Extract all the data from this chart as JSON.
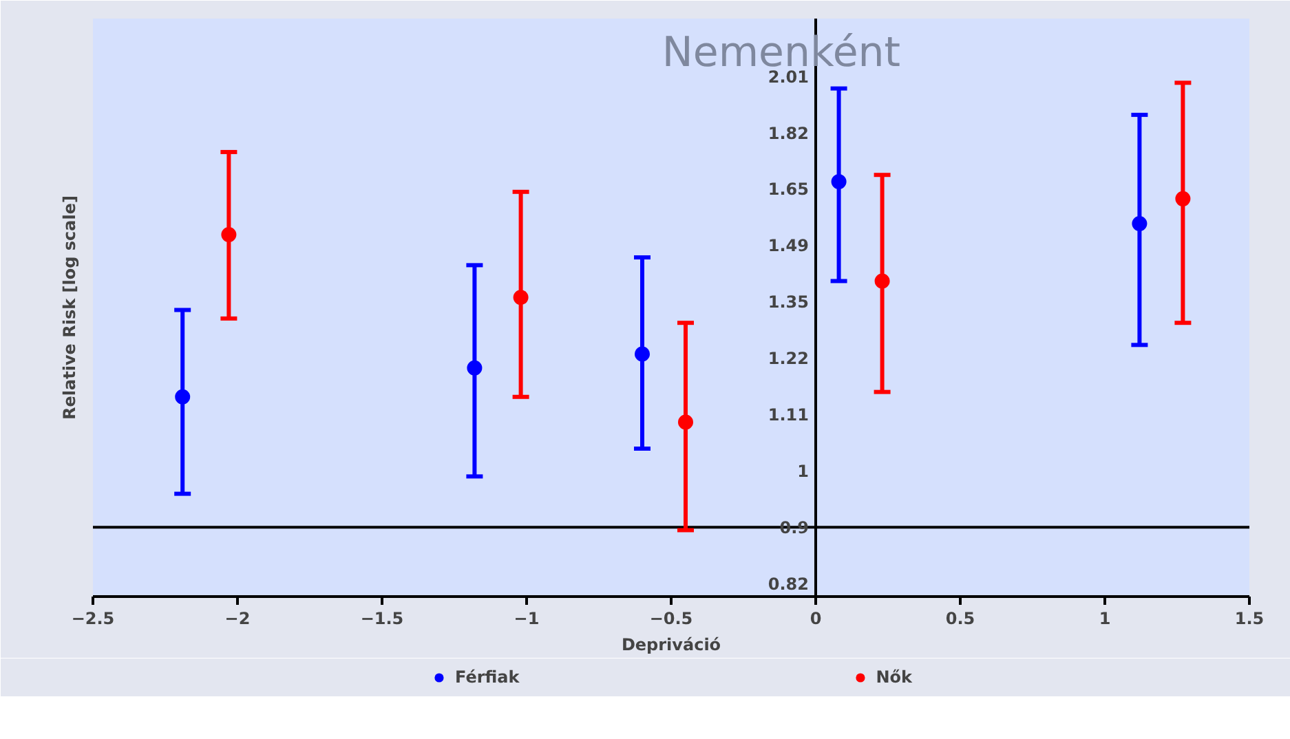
{
  "chart_data": {
    "type": "scatter",
    "title": "Nemenként",
    "xlabel": "Depriváció",
    "ylabel": "Relative Risk [log scale]",
    "log": true,
    "xlim": [
      -2.5,
      1.5
    ],
    "xticks": [
      -2.5,
      -2,
      -1.5,
      -1,
      -0.5,
      0,
      0.5,
      1,
      1.5
    ],
    "ylim": [
      0.8,
      2.23
    ],
    "yticks": [
      {
        "value": 0.8187,
        "label": "0.82"
      },
      {
        "value": 0.9048,
        "label": "0.9"
      },
      1,
      {
        "value": 1.1052,
        "label": "1.11"
      },
      {
        "value": 1.2214,
        "label": "1.22"
      },
      {
        "value": 1.3499,
        "label": "1.35"
      },
      {
        "value": 1.4918,
        "label": "1.49"
      },
      {
        "value": 1.6487,
        "label": "1.65"
      },
      {
        "value": 1.8221,
        "label": "1.82"
      },
      {
        "value": 2.0138,
        "label": "2.01"
      }
    ],
    "grid": false,
    "legend": "bottom",
    "marker": "circle",
    "ref_lines": [
      {
        "axis": "y",
        "value": 0.9048,
        "label": null,
        "color": "#000000"
      }
    ],
    "series": [
      {
        "name": "Férfiak",
        "color": "#0000ff",
        "x": [
          -2.19,
          -1.18,
          -0.6,
          0.08,
          1.12
        ],
        "values": [
          1.14,
          1.2,
          1.23,
          1.67,
          1.55
        ],
        "errors": [
          [
            0.96,
            1.33
          ],
          [
            0.99,
            1.44
          ],
          [
            1.04,
            1.46
          ],
          [
            1.4,
            1.97
          ],
          [
            1.25,
            1.88
          ]
        ]
      },
      {
        "name": "Nők",
        "color": "#ff0000",
        "x": [
          -2.03,
          -1.02,
          -0.45,
          0.23,
          1.27
        ],
        "values": [
          1.52,
          1.36,
          1.09,
          1.4,
          1.62
        ],
        "errors": [
          [
            1.31,
            1.76
          ],
          [
            1.14,
            1.64
          ],
          [
            0.9,
            1.3
          ],
          [
            1.15,
            1.69
          ],
          [
            1.3,
            1.99
          ]
        ]
      }
    ]
  }
}
